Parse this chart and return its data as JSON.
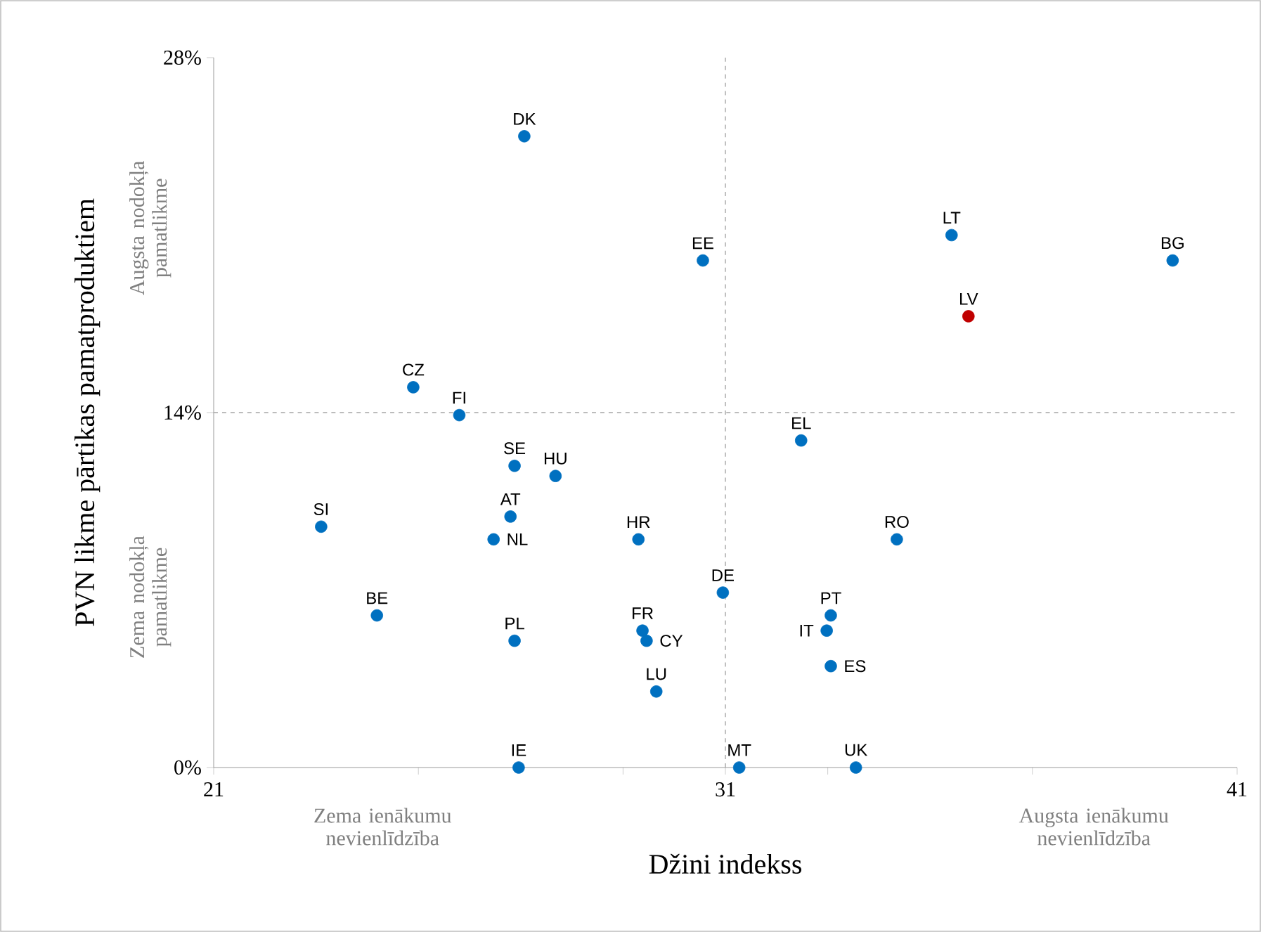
{
  "chart_data": {
    "type": "scatter",
    "xlabel": "Džini indekss",
    "ylabel": "PVN likme pārtikas pamatproduktiem",
    "x": [
      27.07,
      30.56,
      35.42,
      39.74,
      35.75,
      24.9,
      25.8,
      32.48,
      26.88,
      27.68,
      23.1,
      26.8,
      26.47,
      29.3,
      34.35,
      30.95,
      24.19,
      33.06,
      32.98,
      29.38,
      29.46,
      26.88,
      33.06,
      29.65,
      26.96,
      31.27,
      33.55
    ],
    "values": [
      24.9,
      20.0,
      21.0,
      20.0,
      17.8,
      15.0,
      13.9,
      12.9,
      11.9,
      11.5,
      9.5,
      9.9,
      9.0,
      9.0,
      9.0,
      6.9,
      6.0,
      6.0,
      5.4,
      5.4,
      5.0,
      5.0,
      4.0,
      3.0,
      0,
      0,
      0
    ],
    "colors": [
      "#0070c0",
      "#0070c0",
      "#0070c0",
      "#0070c0",
      "#c00000",
      "#0070c0",
      "#0070c0",
      "#0070c0",
      "#0070c0",
      "#0070c0",
      "#0070c0",
      "#0070c0",
      "#0070c0",
      "#0070c0",
      "#0070c0",
      "#0070c0",
      "#0070c0",
      "#0070c0",
      "#0070c0",
      "#0070c0",
      "#0070c0",
      "#0070c0",
      "#0070c0",
      "#0070c0",
      "#0070c0",
      "#0070c0",
      "#0070c0"
    ],
    "marker": "circle",
    "xlim": [
      21,
      41
    ],
    "ylim": [
      0,
      28
    ],
    "xticks": [
      21,
      {
        "value": 25,
        "label": null
      },
      {
        "value": 29,
        "label": null
      },
      31,
      {
        "value": 33,
        "label": null
      },
      {
        "value": 37,
        "label": null
      },
      41
    ],
    "yticks": [
      {
        "value": 0,
        "label": "0%"
      },
      {
        "value": 14,
        "label": "14%"
      },
      {
        "value": 28,
        "label": "28%"
      }
    ],
    "ref_lines": [
      {
        "axis": "x",
        "value": 31,
        "color": "#a6a6a6",
        "line_style": "dashed"
      },
      {
        "axis": "y",
        "value": 14,
        "color": "#a6a6a6",
        "line_style": "dashed"
      }
    ],
    "annotations": [
      {
        "text": "DK",
        "x": 27.07,
        "y": 24.9
      },
      {
        "text": "EE",
        "x": 30.56,
        "y": 20.0
      },
      {
        "text": "LT",
        "x": 35.42,
        "y": 21.0
      },
      {
        "text": "BG",
        "x": 39.74,
        "y": 20.0
      },
      {
        "text": "LV",
        "x": 35.75,
        "y": 17.8
      },
      {
        "text": "CZ",
        "x": 24.9,
        "y": 15.0
      },
      {
        "text": "FI",
        "x": 25.8,
        "y": 13.9
      },
      {
        "text": "EL",
        "x": 32.48,
        "y": 12.9
      },
      {
        "text": "SE",
        "x": 26.88,
        "y": 11.9
      },
      {
        "text": "HU",
        "x": 27.68,
        "y": 11.5
      },
      {
        "text": "SI",
        "x": 23.1,
        "y": 9.5
      },
      {
        "text": "AT",
        "x": 26.8,
        "y": 9.9
      },
      {
        "text": "NL",
        "x": 26.47,
        "y": 9.0
      },
      {
        "text": "HR",
        "x": 29.3,
        "y": 9.0
      },
      {
        "text": "RO",
        "x": 34.35,
        "y": 9.0
      },
      {
        "text": "DE",
        "x": 30.95,
        "y": 6.9
      },
      {
        "text": "BE",
        "x": 24.19,
        "y": 6.0
      },
      {
        "text": "PT",
        "x": 33.06,
        "y": 6.0
      },
      {
        "text": "IT",
        "x": 32.98,
        "y": 5.4
      },
      {
        "text": "FR",
        "x": 29.38,
        "y": 5.4
      },
      {
        "text": "CY",
        "x": 29.46,
        "y": 5.0
      },
      {
        "text": "PL",
        "x": 26.88,
        "y": 5.0
      },
      {
        "text": "ES",
        "x": 33.06,
        "y": 4.0
      },
      {
        "text": "LU",
        "x": 29.65,
        "y": 3.0
      },
      {
        "text": "IE",
        "x": 26.96,
        "y": 0
      },
      {
        "text": "MT",
        "x": 31.27,
        "y": 0
      },
      {
        "text": "UK",
        "x": 33.55,
        "y": 0
      },
      "Augsta nodokļa pamatlikme",
      "Zema nodokļa pamatlikme",
      "Zema ienākumu nevienlīdzība",
      "Augsta ienākumu nevienlīdzība"
    ]
  }
}
